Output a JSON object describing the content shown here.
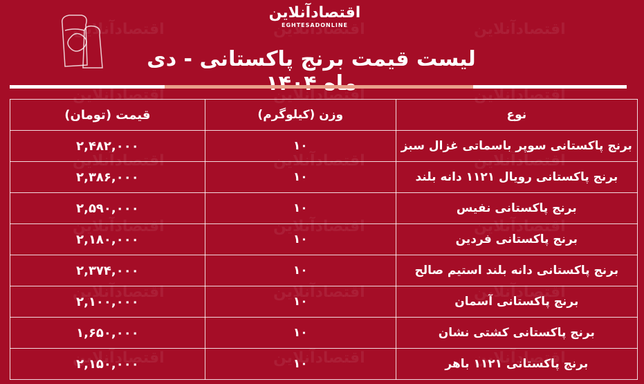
{
  "brand": {
    "logo_fa": "اقتصادآنلاین",
    "logo_en": "EGHTESADONLINE"
  },
  "title": "لیست قیمت برنج پاکستانی - دی ماه ۱۴۰۴",
  "colors": {
    "background": "#a50d27",
    "accent_bar": "#e9a08a",
    "text": "#ffffff"
  },
  "table": {
    "headers": {
      "type": "نوع",
      "weight": "وزن (کیلوگرم)",
      "price": "قیمت (تومان)"
    },
    "rows": [
      {
        "type": "برنج پاکستانی سوپر باسماتی غزال سبز",
        "weight": "۱۰",
        "price": "۲,۴۸۲,۰۰۰"
      },
      {
        "type": "برنج پاکستانی رویال ۱۱۲۱ دانه بلند",
        "weight": "۱۰",
        "price": "۲,۳۸۶,۰۰۰"
      },
      {
        "type": "برنج پاکستانی نفیس",
        "weight": "۱۰",
        "price": "۲,۵۹۰,۰۰۰"
      },
      {
        "type": "برنج پاکستانی فردین",
        "weight": "۱۰",
        "price": "۲,۱۸۰,۰۰۰"
      },
      {
        "type": "برنج پاکستانی دانه بلند استیم صالح",
        "weight": "۱۰",
        "price": "۲,۳۷۴,۰۰۰"
      },
      {
        "type": "برنج پاکستانی آسمان",
        "weight": "۱۰",
        "price": "۲,۱۰۰,۰۰۰"
      },
      {
        "type": "برنج پاکستانی کشتی نشان",
        "weight": "۱۰",
        "price": "۱,۶۵۰,۰۰۰"
      },
      {
        "type": "برنج پاکستانی ۱۱۲۱ باهر",
        "weight": "۱۰",
        "price": "۲,۱۵۰,۰۰۰"
      }
    ]
  }
}
